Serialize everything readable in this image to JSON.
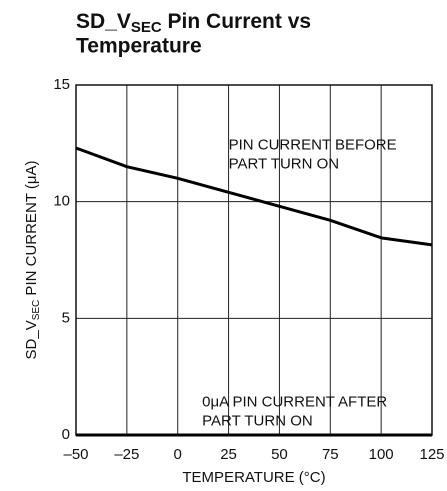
{
  "chart_data": {
    "type": "line",
    "title": [
      "SD_V",
      "SEC",
      " Pin Current vs",
      "Temperature"
    ],
    "y_label": [
      "SD_V",
      "SEC",
      " PIN CURRENT (μA)"
    ],
    "x_label": "TEMPERATURE (°C)",
    "x": [
      -50,
      -25,
      0,
      25,
      50,
      75,
      100,
      125
    ],
    "series": [
      {
        "name": "PIN CURRENT BEFORE PART TURN ON",
        "color": "#000000",
        "values": [
          12.3,
          11.5,
          11.0,
          10.4,
          9.8,
          9.2,
          8.45,
          8.15
        ]
      },
      {
        "name": "0μA PIN CURRENT AFTER PART TURN ON",
        "color": "#000000",
        "values": [
          0,
          0,
          0,
          0,
          0,
          0,
          0,
          0
        ]
      }
    ],
    "annotations": [
      {
        "lines": [
          "PIN CURRENT BEFORE",
          "PART TURN ON"
        ],
        "x": 25,
        "y": 12.4
      },
      {
        "lines": [
          "0μA PIN CURRENT AFTER",
          "PART TURN ON"
        ],
        "x": 12,
        "y": 1.4
      }
    ],
    "xlim": [
      -50,
      125
    ],
    "xticks": [
      {
        "value": -50,
        "label": "–50"
      },
      {
        "value": -25,
        "label": "–25"
      },
      0,
      25,
      50,
      75,
      100,
      125
    ],
    "ylim": [
      0,
      15
    ],
    "yticks": [
      0,
      5,
      10,
      15
    ],
    "grid": true
  }
}
